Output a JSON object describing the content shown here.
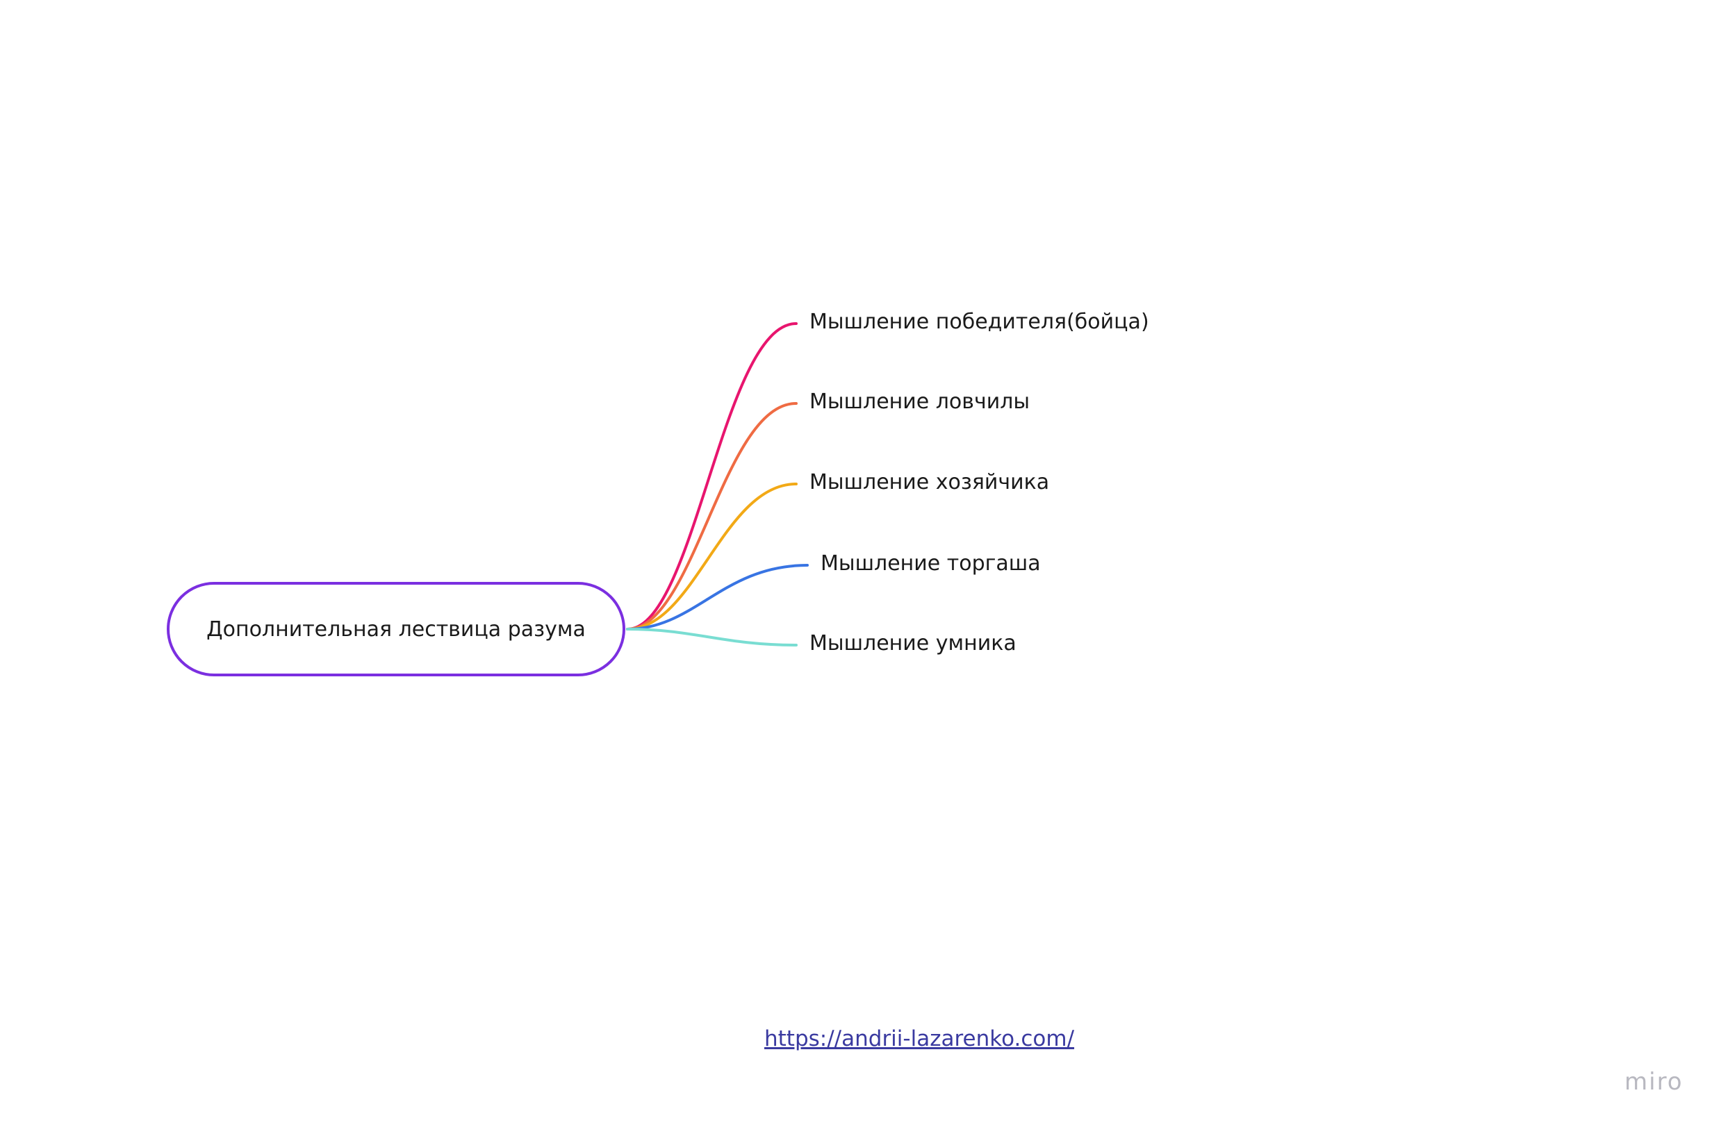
{
  "root": {
    "label": "Дополнительная лествица разума",
    "color": "#7b2fe0"
  },
  "branches": [
    {
      "label": "Мышление победителя(бойца)",
      "color": "#e8156e"
    },
    {
      "label": "Мышление ловчилы",
      "color": "#ef6b43"
    },
    {
      "label": "Мышление хозяйчика",
      "color": "#f2a916"
    },
    {
      "label": "Мышление торгаша",
      "color": "#3874e3"
    },
    {
      "label": "Мышление умника",
      "color": "#79ddd2"
    }
  ],
  "footer": {
    "link_text": "https://andrii-lazarenko.com/"
  },
  "watermark": {
    "text": "miro"
  }
}
